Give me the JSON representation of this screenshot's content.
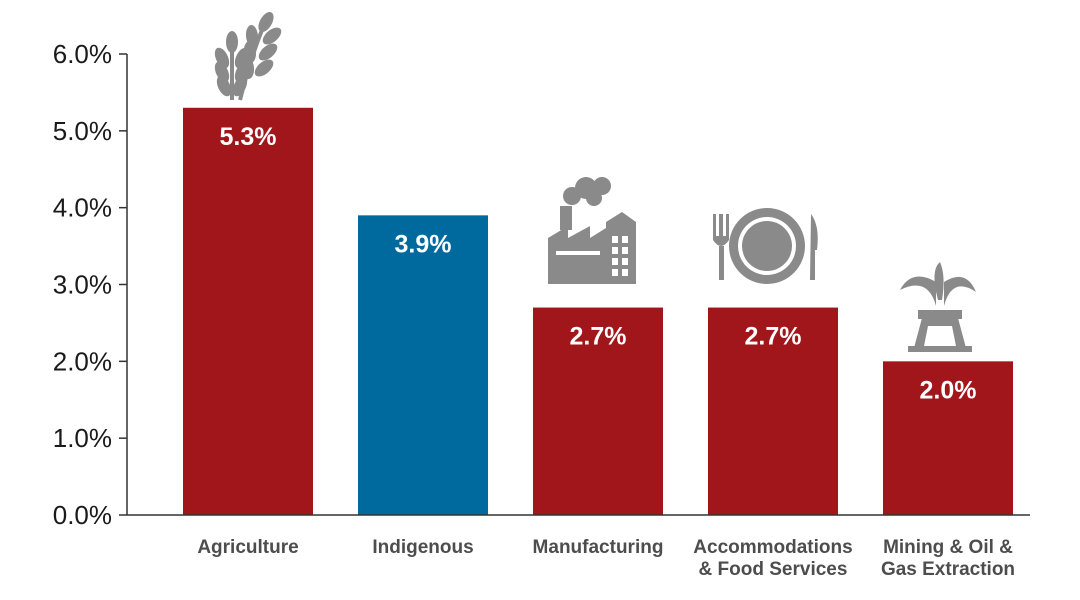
{
  "chart_data": {
    "type": "bar",
    "categories": [
      "Agriculture",
      "Indigenous",
      "Manufacturing",
      "Accommodations & Food Services",
      "Mining & Oil & Gas Extraction"
    ],
    "category_lines": [
      [
        "Agriculture"
      ],
      [
        "Indigenous"
      ],
      [
        "Manufacturing"
      ],
      [
        "Accommodations",
        "& Food Services"
      ],
      [
        "Mining & Oil &",
        "Gas Extraction"
      ]
    ],
    "values": [
      5.3,
      3.9,
      2.7,
      2.7,
      2.0
    ],
    "value_labels": [
      "5.3%",
      "3.9%",
      "2.7%",
      "2.7%",
      "2.0%"
    ],
    "bar_colors": [
      "#a0161b",
      "#006a9e",
      "#a0161b",
      "#a0161b",
      "#a0161b"
    ],
    "icons": [
      "wheat-icon",
      "",
      "factory-icon",
      "place-setting-icon",
      "oil-well-icon"
    ],
    "icon_color": "#8a8a8a",
    "ylim": [
      0,
      6
    ],
    "yticks": [
      0,
      1,
      2,
      3,
      4,
      5,
      6
    ],
    "ytick_labels": [
      "0.0%",
      "1.0%",
      "2.0%",
      "3.0%",
      "4.0%",
      "5.0%",
      "6.0%"
    ],
    "grid": false,
    "legend": "none",
    "title": "",
    "xlabel": "",
    "ylabel": ""
  }
}
